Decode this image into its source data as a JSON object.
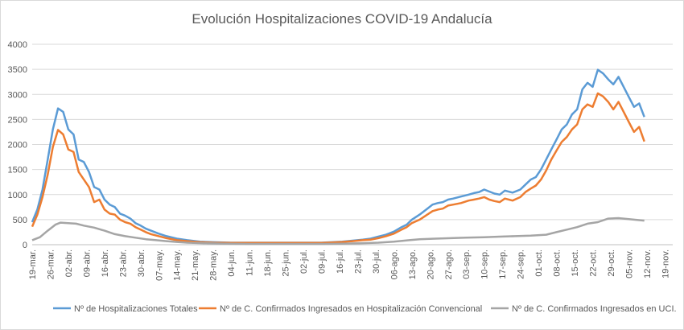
{
  "chart_data": {
    "type": "line",
    "title": "Evolución Hospitalizaciones COVID-19 Andalucía",
    "xlabel": "",
    "ylabel": "",
    "ylim": [
      0,
      4000
    ],
    "yticks": [
      0,
      500,
      1000,
      1500,
      2000,
      2500,
      3000,
      3500,
      4000
    ],
    "grid": true,
    "legend": "bottom",
    "x_start": "19-mar.",
    "x_ticks": [
      "19-mar.",
      "26-mar.",
      "02-abr.",
      "09-abr.",
      "16-abr.",
      "23-abr.",
      "30-abr.",
      "07-may.",
      "14-may.",
      "21-may.",
      "28-may.",
      "04-jun.",
      "11-jun.",
      "18-jun.",
      "25-jun.",
      "02-jul.",
      "09-jul.",
      "16-jul.",
      "23-jul.",
      "30-jul.",
      "06-ago.",
      "13-ago.",
      "20-ago.",
      "27-ago.",
      "03-sep.",
      "10-sep.",
      "17-sep.",
      "24-sep.",
      "01-oct.",
      "08-oct.",
      "15-oct.",
      "22-oct.",
      "29-oct.",
      "05-nov.",
      "12-nov.",
      "19-nov."
    ],
    "series": [
      {
        "name": "Nº de Hospitalizaciones Totales",
        "color": "#5b9bd5",
        "values": [
          [
            0,
            450
          ],
          [
            2,
            700
          ],
          [
            4,
            1100
          ],
          [
            6,
            1700
          ],
          [
            8,
            2300
          ],
          [
            10,
            2720
          ],
          [
            12,
            2650
          ],
          [
            14,
            2300
          ],
          [
            16,
            2200
          ],
          [
            18,
            1700
          ],
          [
            20,
            1650
          ],
          [
            22,
            1450
          ],
          [
            24,
            1150
          ],
          [
            26,
            1100
          ],
          [
            28,
            900
          ],
          [
            30,
            800
          ],
          [
            32,
            750
          ],
          [
            34,
            620
          ],
          [
            36,
            580
          ],
          [
            38,
            520
          ],
          [
            40,
            430
          ],
          [
            42,
            380
          ],
          [
            44,
            320
          ],
          [
            46,
            280
          ],
          [
            49,
            220
          ],
          [
            52,
            170
          ],
          [
            56,
            120
          ],
          [
            60,
            90
          ],
          [
            65,
            60
          ],
          [
            70,
            50
          ],
          [
            77,
            40
          ],
          [
            84,
            40
          ],
          [
            91,
            40
          ],
          [
            98,
            40
          ],
          [
            105,
            40
          ],
          [
            112,
            40
          ],
          [
            116,
            50
          ],
          [
            120,
            60
          ],
          [
            124,
            80
          ],
          [
            128,
            100
          ],
          [
            131,
            120
          ],
          [
            134,
            160
          ],
          [
            137,
            200
          ],
          [
            140,
            260
          ],
          [
            143,
            350
          ],
          [
            145,
            400
          ],
          [
            147,
            500
          ],
          [
            150,
            600
          ],
          [
            153,
            720
          ],
          [
            155,
            800
          ],
          [
            157,
            830
          ],
          [
            159,
            850
          ],
          [
            161,
            900
          ],
          [
            163,
            920
          ],
          [
            166,
            960
          ],
          [
            169,
            1000
          ],
          [
            171,
            1030
          ],
          [
            173,
            1050
          ],
          [
            175,
            1100
          ],
          [
            177,
            1060
          ],
          [
            179,
            1020
          ],
          [
            181,
            1000
          ],
          [
            183,
            1080
          ],
          [
            186,
            1040
          ],
          [
            189,
            1100
          ],
          [
            191,
            1200
          ],
          [
            193,
            1300
          ],
          [
            195,
            1350
          ],
          [
            197,
            1500
          ],
          [
            199,
            1700
          ],
          [
            201,
            1900
          ],
          [
            203,
            2100
          ],
          [
            205,
            2300
          ],
          [
            207,
            2400
          ],
          [
            209,
            2600
          ],
          [
            211,
            2700
          ],
          [
            213,
            3100
          ],
          [
            215,
            3230
          ],
          [
            217,
            3150
          ],
          [
            219,
            3490
          ],
          [
            221,
            3420
          ],
          [
            223,
            3300
          ],
          [
            225,
            3200
          ],
          [
            227,
            3350
          ],
          [
            229,
            3150
          ],
          [
            231,
            2950
          ],
          [
            233,
            2750
          ],
          [
            235,
            2820
          ],
          [
            237,
            2550
          ]
        ]
      },
      {
        "name": "Nº de C. Confirmados Ingresados en Hospitalización Convencional",
        "color": "#ed7d31",
        "values": [
          [
            0,
            360
          ],
          [
            2,
            600
          ],
          [
            4,
            950
          ],
          [
            6,
            1400
          ],
          [
            8,
            1950
          ],
          [
            10,
            2290
          ],
          [
            12,
            2200
          ],
          [
            14,
            1900
          ],
          [
            16,
            1850
          ],
          [
            18,
            1450
          ],
          [
            20,
            1300
          ],
          [
            22,
            1150
          ],
          [
            24,
            850
          ],
          [
            26,
            900
          ],
          [
            28,
            700
          ],
          [
            30,
            620
          ],
          [
            32,
            600
          ],
          [
            34,
            500
          ],
          [
            36,
            450
          ],
          [
            38,
            420
          ],
          [
            40,
            350
          ],
          [
            42,
            300
          ],
          [
            44,
            250
          ],
          [
            46,
            210
          ],
          [
            49,
            170
          ],
          [
            52,
            130
          ],
          [
            56,
            90
          ],
          [
            60,
            70
          ],
          [
            65,
            50
          ],
          [
            70,
            40
          ],
          [
            77,
            35
          ],
          [
            84,
            35
          ],
          [
            91,
            35
          ],
          [
            98,
            35
          ],
          [
            105,
            35
          ],
          [
            112,
            35
          ],
          [
            116,
            45
          ],
          [
            120,
            55
          ],
          [
            124,
            70
          ],
          [
            128,
            90
          ],
          [
            131,
            100
          ],
          [
            134,
            130
          ],
          [
            137,
            170
          ],
          [
            140,
            220
          ],
          [
            143,
            300
          ],
          [
            145,
            350
          ],
          [
            147,
            430
          ],
          [
            150,
            500
          ],
          [
            153,
            600
          ],
          [
            155,
            670
          ],
          [
            157,
            700
          ],
          [
            159,
            720
          ],
          [
            161,
            780
          ],
          [
            163,
            800
          ],
          [
            166,
            830
          ],
          [
            169,
            880
          ],
          [
            171,
            900
          ],
          [
            173,
            920
          ],
          [
            175,
            950
          ],
          [
            177,
            900
          ],
          [
            179,
            870
          ],
          [
            181,
            850
          ],
          [
            183,
            920
          ],
          [
            186,
            880
          ],
          [
            189,
            950
          ],
          [
            191,
            1050
          ],
          [
            193,
            1120
          ],
          [
            195,
            1180
          ],
          [
            197,
            1300
          ],
          [
            199,
            1480
          ],
          [
            201,
            1700
          ],
          [
            203,
            1880
          ],
          [
            205,
            2050
          ],
          [
            207,
            2150
          ],
          [
            209,
            2300
          ],
          [
            211,
            2400
          ],
          [
            213,
            2700
          ],
          [
            215,
            2800
          ],
          [
            217,
            2750
          ],
          [
            219,
            3020
          ],
          [
            221,
            2960
          ],
          [
            223,
            2850
          ],
          [
            225,
            2700
          ],
          [
            227,
            2850
          ],
          [
            229,
            2650
          ],
          [
            231,
            2450
          ],
          [
            233,
            2250
          ],
          [
            235,
            2350
          ],
          [
            237,
            2060
          ]
        ]
      },
      {
        "name": "Nº de C. Confirmados Ingresados en UCI.",
        "color": "#a5a5a5",
        "values": [
          [
            0,
            90
          ],
          [
            3,
            150
          ],
          [
            6,
            280
          ],
          [
            9,
            400
          ],
          [
            11,
            440
          ],
          [
            14,
            430
          ],
          [
            17,
            420
          ],
          [
            20,
            380
          ],
          [
            24,
            340
          ],
          [
            28,
            280
          ],
          [
            32,
            210
          ],
          [
            36,
            170
          ],
          [
            40,
            140
          ],
          [
            44,
            110
          ],
          [
            48,
            90
          ],
          [
            52,
            70
          ],
          [
            56,
            55
          ],
          [
            60,
            40
          ],
          [
            66,
            30
          ],
          [
            74,
            20
          ],
          [
            84,
            15
          ],
          [
            98,
            15
          ],
          [
            112,
            15
          ],
          [
            120,
            20
          ],
          [
            128,
            30
          ],
          [
            134,
            40
          ],
          [
            140,
            60
          ],
          [
            146,
            90
          ],
          [
            150,
            110
          ],
          [
            156,
            120
          ],
          [
            162,
            130
          ],
          [
            168,
            140
          ],
          [
            175,
            150
          ],
          [
            181,
            160
          ],
          [
            187,
            170
          ],
          [
            193,
            180
          ],
          [
            199,
            200
          ],
          [
            203,
            250
          ],
          [
            207,
            300
          ],
          [
            211,
            350
          ],
          [
            215,
            420
          ],
          [
            219,
            450
          ],
          [
            223,
            520
          ],
          [
            227,
            530
          ],
          [
            231,
            510
          ],
          [
            235,
            490
          ],
          [
            237,
            480
          ]
        ]
      }
    ]
  }
}
